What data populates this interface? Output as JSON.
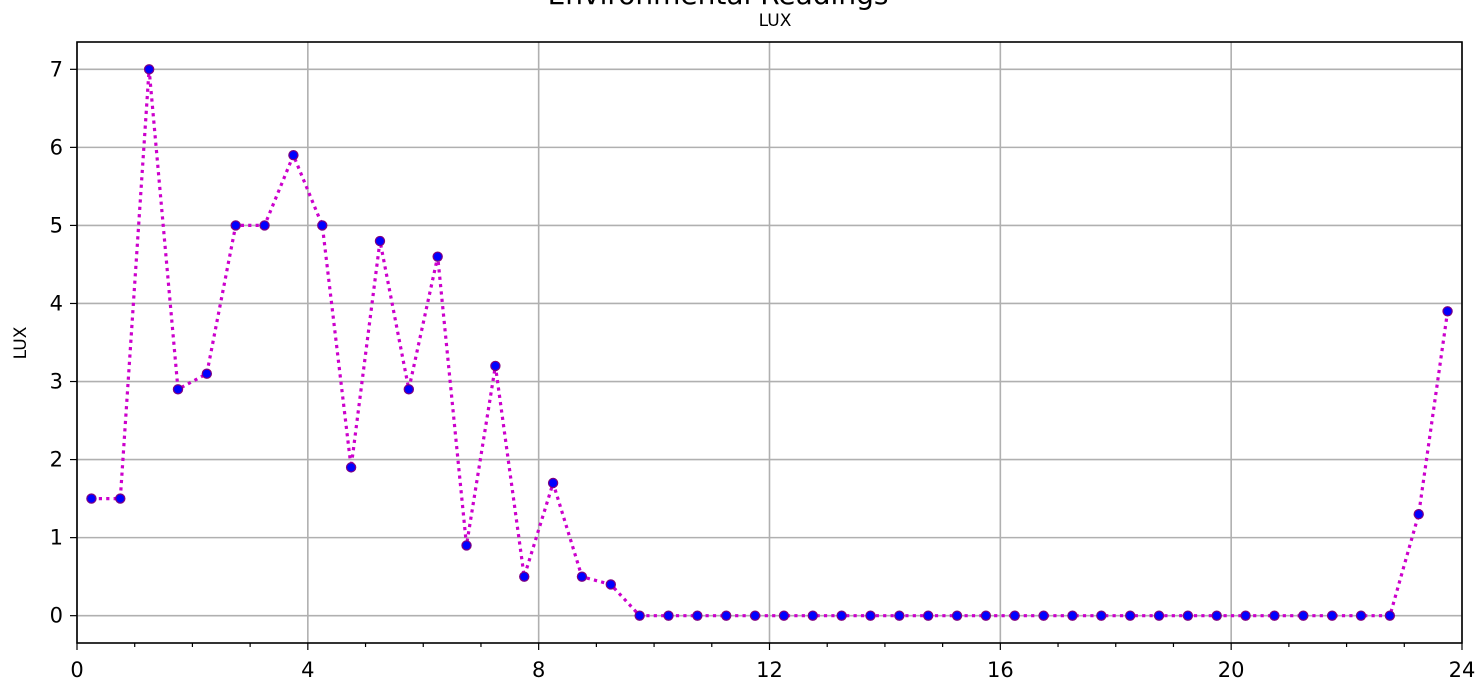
{
  "chart_data": {
    "type": "line",
    "title": "Environmental Readings",
    "subtitle": "LUX",
    "ylabel": "LUX",
    "xlabel": "",
    "xlim": [
      0,
      24
    ],
    "ylim": [
      -0.35,
      7.35
    ],
    "xticks": [
      0,
      4,
      8,
      12,
      16,
      20,
      24
    ],
    "yticks": [
      0,
      1,
      2,
      3,
      4,
      5,
      6,
      7
    ],
    "grid": true,
    "line_color": "#cc00cc",
    "line_style": "dotted",
    "marker_fill": "#0000ff",
    "marker_edge": "#800080",
    "series": [
      {
        "x": [
          0.25,
          0.75,
          1.25,
          1.75,
          2.25,
          2.75,
          3.25,
          3.75,
          4.25,
          4.75,
          5.25,
          5.75,
          6.25,
          6.75,
          7.25,
          7.75,
          8.25,
          8.75,
          9.25,
          9.75,
          10.25,
          10.75,
          11.25,
          11.75,
          12.25,
          12.75,
          13.25,
          13.75,
          14.25,
          14.75,
          15.25,
          15.75,
          16.25,
          16.75,
          17.25,
          17.75,
          18.25,
          18.75,
          19.25,
          19.75,
          20.25,
          20.75,
          21.25,
          21.75,
          22.25,
          22.75,
          23.25,
          23.75
        ],
        "values": [
          1.5,
          1.5,
          7.0,
          2.9,
          3.1,
          5.0,
          5.0,
          5.9,
          5.0,
          1.9,
          4.8,
          2.9,
          4.6,
          0.9,
          3.2,
          0.5,
          1.7,
          0.5,
          0.4,
          0,
          0,
          0,
          0,
          0,
          0,
          0,
          0,
          0,
          0,
          0,
          0,
          0,
          0,
          0,
          0,
          0,
          0,
          0,
          0,
          0,
          0,
          0,
          0,
          0,
          0,
          0,
          1.3,
          3.9
        ]
      }
    ]
  }
}
